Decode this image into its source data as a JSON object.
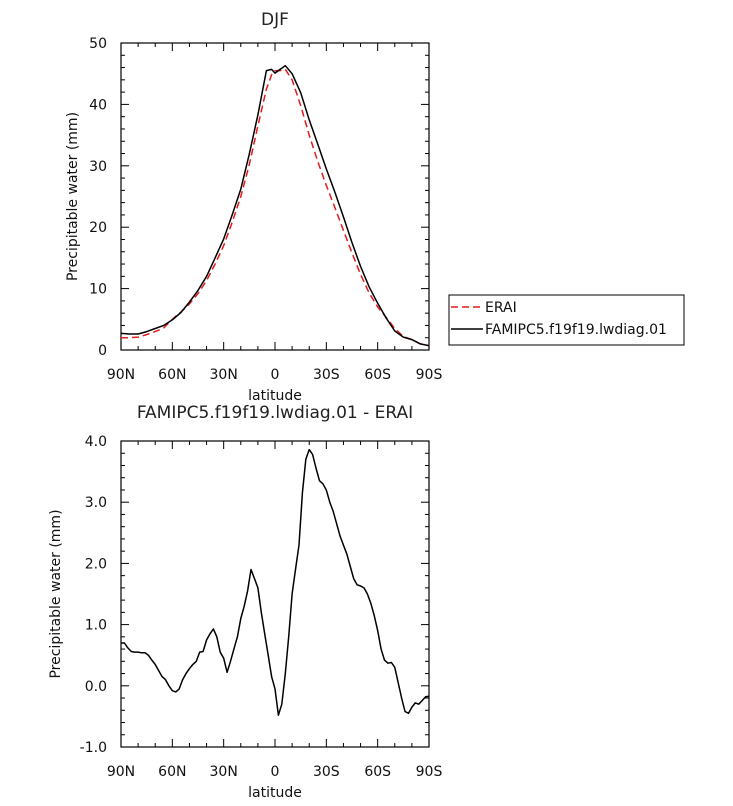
{
  "chart_data": [
    {
      "type": "line",
      "title": "DJF",
      "xlabel": "latitude",
      "ylabel": "Precipitable water (mm)",
      "xlim": [
        90,
        -90
      ],
      "ylim": [
        0,
        50
      ],
      "xticks": [
        90,
        60,
        30,
        0,
        -30,
        -60,
        -90
      ],
      "xtick_labels": [
        "90N",
        "60N",
        "30N",
        "0",
        "30S",
        "60S",
        "90S"
      ],
      "yticks": [
        0,
        10,
        20,
        30,
        40,
        50
      ],
      "ytick_labels": [
        "0",
        "10",
        "20",
        "30",
        "40",
        "50"
      ],
      "legend_position": "right",
      "series": [
        {
          "name": "ERAI",
          "color": "#e41a1c",
          "dash": "dashed",
          "x": [
            90,
            85,
            80,
            75,
            70,
            65,
            60,
            55,
            50,
            45,
            40,
            35,
            30,
            25,
            20,
            15,
            10,
            5,
            2,
            0,
            -3,
            -6,
            -10,
            -15,
            -20,
            -25,
            -30,
            -35,
            -40,
            -45,
            -50,
            -55,
            -60,
            -65,
            -70,
            -75,
            -80,
            -85,
            -90
          ],
          "y": [
            2.0,
            2.0,
            2.1,
            2.5,
            3.0,
            3.6,
            5.0,
            6.2,
            7.5,
            9.2,
            11.3,
            14.0,
            17.0,
            20.8,
            25.0,
            30.2,
            36.5,
            42.5,
            44.8,
            45.5,
            45.5,
            45.7,
            44.0,
            39.8,
            35.0,
            30.7,
            26.8,
            23.2,
            19.5,
            15.8,
            12.3,
            9.3,
            7.0,
            5.3,
            3.5,
            2.2,
            1.7,
            1.0,
            0.7
          ]
        },
        {
          "name": "FAMIPC5.f19f19.lwdiag.01",
          "color": "#000000",
          "dash": "solid",
          "x": [
            90,
            85,
            80,
            75,
            70,
            65,
            60,
            55,
            50,
            45,
            40,
            35,
            30,
            25,
            20,
            15,
            10,
            5,
            2,
            0,
            -3,
            -6,
            -10,
            -15,
            -20,
            -25,
            -30,
            -35,
            -40,
            -45,
            -50,
            -55,
            -60,
            -65,
            -70,
            -75,
            -80,
            -85,
            -90
          ],
          "y": [
            2.7,
            2.6,
            2.6,
            3.0,
            3.5,
            4.0,
            4.9,
            6.1,
            7.8,
            9.7,
            12.0,
            15.0,
            18.1,
            22.0,
            26.2,
            31.9,
            38.3,
            45.5,
            45.7,
            45.1,
            45.7,
            46.3,
            45.0,
            41.9,
            37.5,
            33.5,
            29.5,
            25.7,
            21.7,
            17.5,
            13.6,
            10.3,
            7.6,
            5.2,
            3.1,
            2.1,
            1.7,
            1.0,
            0.7
          ]
        }
      ]
    },
    {
      "type": "line",
      "title": "FAMIPC5.f19f19.lwdiag.01 - ERAI",
      "xlabel": "latitude",
      "ylabel": "Precipitable water (mm)",
      "xlim": [
        90,
        -90
      ],
      "ylim": [
        -1.0,
        4.0
      ],
      "xticks": [
        90,
        60,
        30,
        0,
        -30,
        -60,
        -90
      ],
      "xtick_labels": [
        "90N",
        "60N",
        "30N",
        "0",
        "30S",
        "60S",
        "90S"
      ],
      "yticks": [
        -1.0,
        0.0,
        1.0,
        2.0,
        3.0,
        4.0
      ],
      "ytick_labels": [
        "-1.0",
        "0.0",
        "1.0",
        "2.0",
        "3.0",
        "4.0"
      ],
      "series": [
        {
          "color": "#000000",
          "dash": "solid",
          "x": [
            90,
            88,
            86,
            84,
            82,
            80,
            78,
            76,
            74,
            72,
            70,
            68,
            66,
            64,
            62,
            60,
            58,
            56,
            54,
            52,
            50,
            48,
            46,
            44,
            42,
            40,
            38,
            36,
            34,
            32,
            30,
            28,
            26,
            24,
            22,
            20,
            18,
            16,
            14,
            12,
            10,
            8,
            6,
            4,
            2,
            0,
            -2,
            -4,
            -6,
            -8,
            -10,
            -12,
            -14,
            -16,
            -18,
            -20,
            -22,
            -24,
            -26,
            -28,
            -30,
            -32,
            -34,
            -36,
            -38,
            -40,
            -42,
            -44,
            -46,
            -48,
            -50,
            -52,
            -54,
            -56,
            -58,
            -60,
            -62,
            -64,
            -66,
            -68,
            -70,
            -72,
            -74,
            -76,
            -78,
            -80,
            -82,
            -84,
            -86,
            -88,
            -90
          ],
          "y": [
            0.7,
            0.7,
            0.62,
            0.56,
            0.55,
            0.55,
            0.54,
            0.54,
            0.5,
            0.42,
            0.35,
            0.25,
            0.15,
            0.1,
            0.0,
            -0.08,
            -0.1,
            -0.05,
            0.1,
            0.2,
            0.28,
            0.35,
            0.4,
            0.55,
            0.56,
            0.75,
            0.85,
            0.93,
            0.8,
            0.55,
            0.45,
            0.22,
            0.4,
            0.6,
            0.8,
            1.1,
            1.3,
            1.55,
            1.9,
            1.75,
            1.6,
            1.2,
            0.85,
            0.5,
            0.15,
            -0.05,
            -0.48,
            -0.3,
            0.2,
            0.8,
            1.5,
            1.9,
            2.3,
            3.15,
            3.7,
            3.86,
            3.78,
            3.55,
            3.35,
            3.3,
            3.2,
            3.0,
            2.85,
            2.65,
            2.45,
            2.3,
            2.15,
            1.95,
            1.75,
            1.65,
            1.63,
            1.6,
            1.5,
            1.35,
            1.15,
            0.9,
            0.6,
            0.42,
            0.37,
            0.38,
            0.3,
            0.05,
            -0.2,
            -0.42,
            -0.45,
            -0.35,
            -0.28,
            -0.3,
            -0.24,
            -0.18,
            -0.17
          ]
        }
      ]
    }
  ]
}
